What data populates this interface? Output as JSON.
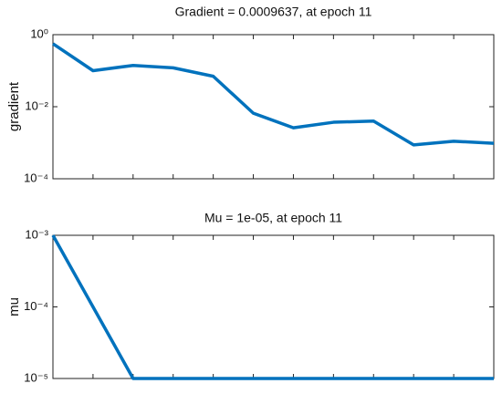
{
  "chart_data": [
    {
      "type": "line",
      "title": "Gradient = 0.0009637, at epoch 11",
      "ylabel": "gradient",
      "yscale": "log",
      "x": [
        0,
        1,
        2,
        3,
        4,
        5,
        6,
        7,
        8,
        9,
        10,
        11
      ],
      "values": [
        0.56,
        0.1,
        0.14,
        0.12,
        0.07,
        0.0066,
        0.0026,
        0.0037,
        0.004,
        0.00087,
        0.0011,
        0.0009637
      ],
      "color": "#0072bd",
      "xlim": [
        0,
        11
      ],
      "ylim": [
        0.0001,
        1
      ],
      "yticks": [
        {
          "value": 0.0001,
          "label": "10⁻⁴"
        },
        {
          "value": 0.01,
          "label": "10⁻²"
        },
        {
          "value": 1,
          "label": "10⁰"
        }
      ]
    },
    {
      "type": "line",
      "title": "Mu = 1e-05, at epoch 11",
      "ylabel": "mu",
      "yscale": "log",
      "x": [
        0,
        1,
        2,
        3,
        4,
        5,
        6,
        7,
        8,
        9,
        10,
        11
      ],
      "values": [
        0.001,
        0.0001,
        1e-05,
        1e-05,
        1e-05,
        1e-05,
        1e-05,
        1e-05,
        1e-05,
        1e-05,
        1e-05,
        1e-05
      ],
      "color": "#0072bd",
      "xlim": [
        0,
        11
      ],
      "ylim": [
        1e-05,
        0.001
      ],
      "yticks": [
        {
          "value": 1e-05,
          "label": "10⁻⁵"
        },
        {
          "value": 0.0001,
          "label": "10⁻⁴"
        },
        {
          "value": 0.001,
          "label": "10⁻³"
        }
      ]
    }
  ]
}
